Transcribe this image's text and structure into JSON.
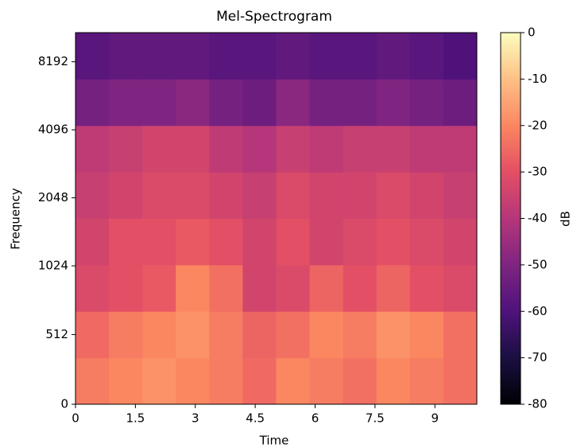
{
  "chart_data": {
    "type": "heatmap",
    "title": "Mel-Spectrogram",
    "x_label": "Time",
    "y_label": "Frequency",
    "colorbar_label": "dB",
    "colormap": "magma",
    "xlim": [
      0,
      10.05
    ],
    "xticks": [
      0,
      1.5,
      3,
      4.5,
      6,
      7.5,
      9
    ],
    "ylim": [
      0,
      11025
    ],
    "yticks": [
      0,
      512,
      1024,
      2048,
      4096,
      8192
    ],
    "yscale": "symlog",
    "linthresh": 1000,
    "base": 2,
    "clim": [
      -80,
      0
    ],
    "cticks": [
      0,
      -10,
      -20,
      -30,
      -40,
      -50,
      -60,
      -70,
      -80
    ],
    "z": [
      [
        -22,
        -20,
        -18,
        -20,
        -22,
        -25,
        -20,
        -22,
        -24,
        -20,
        -22,
        -24
      ],
      [
        -25,
        -22,
        -20,
        -18,
        -22,
        -26,
        -24,
        -20,
        -22,
        -18,
        -20,
        -24
      ],
      [
        -32,
        -30,
        -28,
        -20,
        -24,
        -34,
        -32,
        -26,
        -30,
        -26,
        -30,
        -32
      ],
      [
        -34,
        -30,
        -30,
        -28,
        -30,
        -34,
        -30,
        -34,
        -32,
        -30,
        -32,
        -34
      ],
      [
        -36,
        -34,
        -32,
        -32,
        -34,
        -36,
        -32,
        -34,
        -34,
        -32,
        -34,
        -36
      ],
      [
        -38,
        -36,
        -34,
        -34,
        -38,
        -40,
        -36,
        -38,
        -36,
        -36,
        -38,
        -38
      ],
      [
        -52,
        -50,
        -50,
        -48,
        -52,
        -54,
        -48,
        -52,
        -52,
        -50,
        -52,
        -54
      ],
      [
        -58,
        -56,
        -56,
        -56,
        -58,
        -58,
        -56,
        -58,
        -58,
        -56,
        -58,
        -60
      ]
    ]
  }
}
